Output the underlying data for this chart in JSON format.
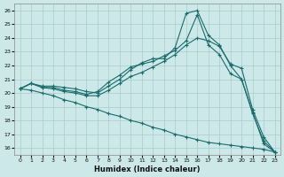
{
  "xlabel": "Humidex (Indice chaleur)",
  "background_color": "#cce8e8",
  "grid_color": "#aacccc",
  "line_color": "#1a6b6b",
  "xlim": [
    -0.5,
    23.5
  ],
  "ylim": [
    15.5,
    26.5
  ],
  "xticks": [
    0,
    1,
    2,
    3,
    4,
    5,
    6,
    7,
    8,
    9,
    10,
    11,
    12,
    13,
    14,
    15,
    16,
    17,
    18,
    19,
    20,
    21,
    22,
    23
  ],
  "yticks": [
    16,
    17,
    18,
    19,
    20,
    21,
    22,
    23,
    24,
    25,
    26
  ],
  "line1_x": [
    0,
    1,
    2,
    3,
    4,
    5,
    6,
    7,
    8,
    9,
    10,
    11,
    12,
    13,
    14,
    15,
    16,
    17,
    18,
    19,
    20,
    21,
    22,
    23
  ],
  "line1_y": [
    20.3,
    20.7,
    20.5,
    20.5,
    20.4,
    20.3,
    20.1,
    20.0,
    20.5,
    21.0,
    21.7,
    22.2,
    22.5,
    22.5,
    23.3,
    25.8,
    26.0,
    24.2,
    23.5,
    22.0,
    21.0,
    18.5,
    16.5,
    15.7
  ],
  "line2_x": [
    0,
    1,
    2,
    3,
    4,
    5,
    6,
    7,
    8,
    9,
    10,
    11,
    12,
    13,
    14,
    15,
    16,
    17,
    18,
    19,
    20,
    21,
    22,
    23
  ],
  "line2_y": [
    20.3,
    20.7,
    20.4,
    20.4,
    20.2,
    20.1,
    19.9,
    20.1,
    20.8,
    21.3,
    21.9,
    22.1,
    22.3,
    22.7,
    23.1,
    23.8,
    25.7,
    23.5,
    22.8,
    21.4,
    21.0,
    18.6,
    16.3,
    15.7
  ],
  "line3_x": [
    0,
    1,
    2,
    3,
    4,
    5,
    6,
    7,
    8,
    9,
    10,
    11,
    12,
    13,
    14,
    15,
    16,
    17,
    18,
    19,
    20,
    21,
    22,
    23
  ],
  "line3_y": [
    20.3,
    20.7,
    20.4,
    20.3,
    20.1,
    20.0,
    19.8,
    19.8,
    20.2,
    20.7,
    21.2,
    21.5,
    21.9,
    22.3,
    22.8,
    23.5,
    24.0,
    23.8,
    23.4,
    22.1,
    21.8,
    18.8,
    16.8,
    15.7
  ],
  "line4_x": [
    0,
    1,
    2,
    3,
    4,
    5,
    6,
    7,
    8,
    9,
    10,
    11,
    12,
    13,
    14,
    15,
    16,
    17,
    18,
    19,
    20,
    21,
    22,
    23
  ],
  "line4_y": [
    20.3,
    20.2,
    20.0,
    19.8,
    19.5,
    19.3,
    19.0,
    18.8,
    18.5,
    18.3,
    18.0,
    17.8,
    17.5,
    17.3,
    17.0,
    16.8,
    16.6,
    16.4,
    16.3,
    16.2,
    16.1,
    16.0,
    15.9,
    15.7
  ]
}
